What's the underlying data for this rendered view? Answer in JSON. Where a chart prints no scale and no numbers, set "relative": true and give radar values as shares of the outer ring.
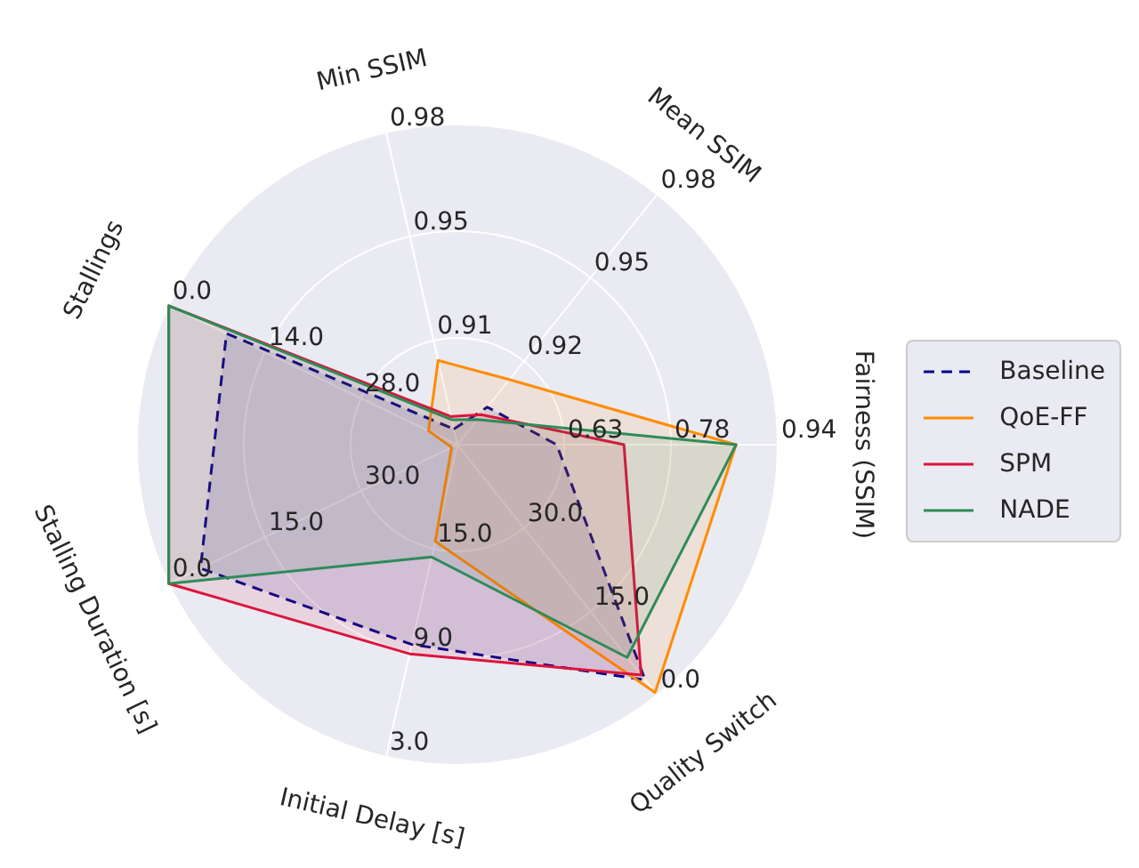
{
  "chart_data": {
    "type": "radar",
    "relative": true,
    "grid": true,
    "legend": "right",
    "marker": "none",
    "categories": [
      "Min SSIM",
      "Mean SSIM",
      "Fairness (SSIM)",
      "Quality Switch",
      "Initial Delay [s]",
      "Stalling Duration [s]",
      "Stallings"
    ],
    "series": [
      {
        "name": "Baseline",
        "color": "#00008b",
        "line_style": "dashed",
        "values": [
          0.05,
          0.15,
          0.31,
          0.94,
          0.64,
          0.89,
          0.8
        ]
      },
      {
        "name": "QoE-FF",
        "color": "#ff8c00",
        "values": [
          0.27,
          0.26,
          0.87,
          0.99,
          0.31,
          0.02,
          0.1
        ]
      },
      {
        "name": "SPM",
        "color": "#dc143c",
        "values": [
          0.09,
          0.12,
          0.52,
          0.92,
          0.67,
          1,
          1
        ]
      },
      {
        "name": "NADE",
        "color": "#2e8b57",
        "values": [
          0.08,
          0.1,
          0.87,
          0.85,
          0.36,
          1,
          1
        ]
      }
    ],
    "annotations": [
      "0.91",
      "0.95",
      "0.98",
      "0.92",
      "0.95",
      "0.98",
      "0.63",
      "0.78",
      "0.94",
      "30.0",
      "15.0",
      "0.0",
      "15.0",
      "9.0",
      "3.0",
      "30.0",
      "15.0",
      "0.0",
      "28.0",
      "14.0",
      "0.0"
    ]
  }
}
